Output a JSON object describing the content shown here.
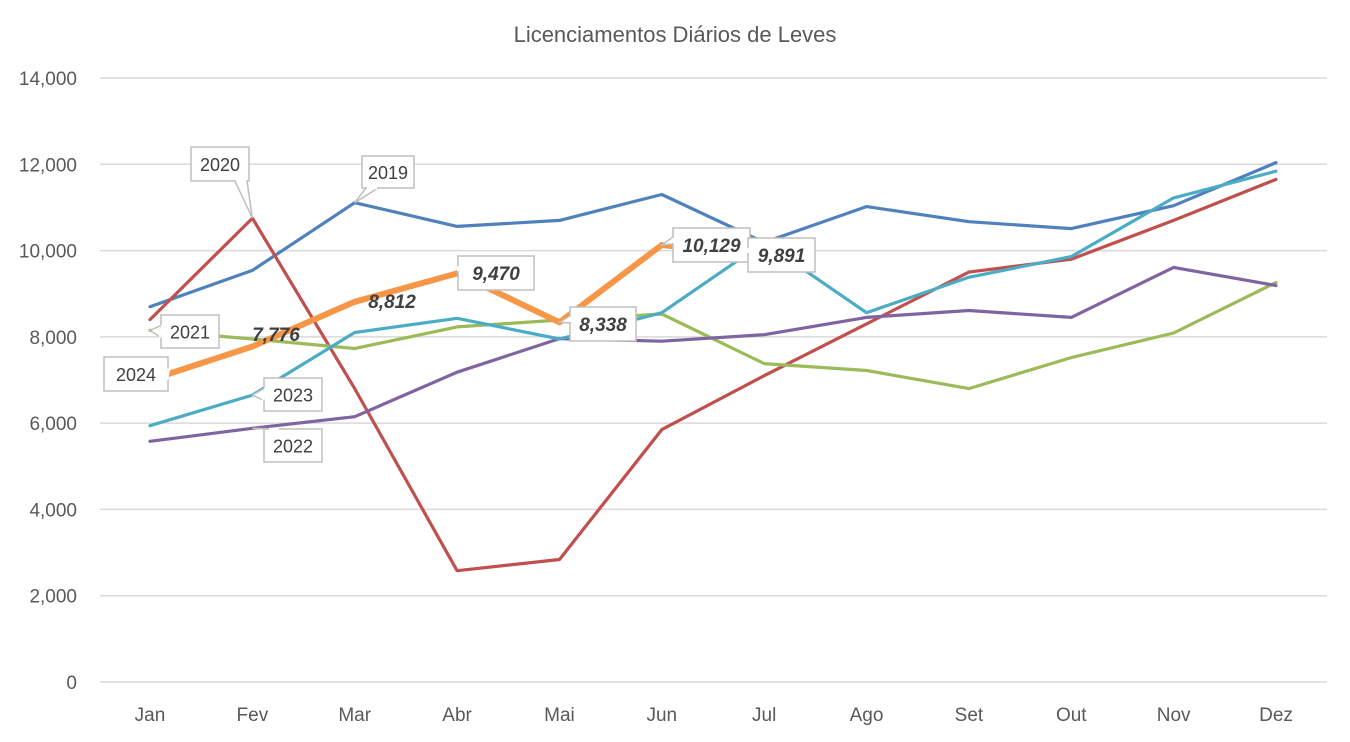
{
  "chart_data": {
    "type": "line",
    "title": "Licenciamentos Diários de Leves",
    "xlabel": "",
    "ylabel": "",
    "ylim": [
      0,
      14000
    ],
    "yticks": [
      0,
      2000,
      4000,
      6000,
      8000,
      10000,
      12000,
      14000
    ],
    "ytick_labels": [
      "0",
      "2,000",
      "4,000",
      "6,000",
      "8,000",
      "10,000",
      "12,000",
      "14,000"
    ],
    "grid": true,
    "legend": "none (series labeled by callouts)",
    "categories": [
      "Jan",
      "Fev",
      "Mar",
      "Abr",
      "Mai",
      "Jun",
      "Jul",
      "Ago",
      "Set",
      "Out",
      "Nov",
      "Dez"
    ],
    "series": [
      {
        "name": "2019",
        "color": "#4F81BD",
        "label_at": 2,
        "values": [
          8700,
          9540,
          11110,
          10560,
          10700,
          11300,
          10190,
          11020,
          10670,
          10510,
          11040,
          12040
        ]
      },
      {
        "name": "2020",
        "color": "#C0504D",
        "label_at": 1,
        "values": [
          8400,
          10750,
          6800,
          2580,
          2840,
          5850,
          7100,
          8300,
          9500,
          9800,
          10700,
          11650
        ]
      },
      {
        "name": "2021",
        "color": "#9BBB59",
        "label_at": 0,
        "values": [
          8150,
          7950,
          7730,
          8230,
          8390,
          8530,
          7380,
          7220,
          6800,
          7520,
          8090,
          9260
        ]
      },
      {
        "name": "2022",
        "color": "#8064A2",
        "label_at": 1,
        "values": [
          5580,
          5880,
          6150,
          7180,
          7960,
          7900,
          8050,
          8450,
          8610,
          8450,
          9610,
          9190
        ]
      },
      {
        "name": "2023",
        "color": "#4BACC6",
        "label_at": 1,
        "values": [
          5940,
          6650,
          8100,
          8430,
          7950,
          8560,
          10190,
          8560,
          9380,
          9860,
          11220,
          11840
        ]
      },
      {
        "name": "2024",
        "color": "#F79646",
        "label_at": 0,
        "thick": true,
        "values": [
          7000,
          7776,
          8812,
          9470,
          8338,
          10129,
          9891,
          null,
          null,
          null,
          null,
          null
        ],
        "data_labels": [
          null,
          "7,776",
          "8,812",
          "9,470",
          "8,338",
          "10,129",
          "9,891",
          null,
          null,
          null,
          null,
          null
        ]
      }
    ]
  }
}
